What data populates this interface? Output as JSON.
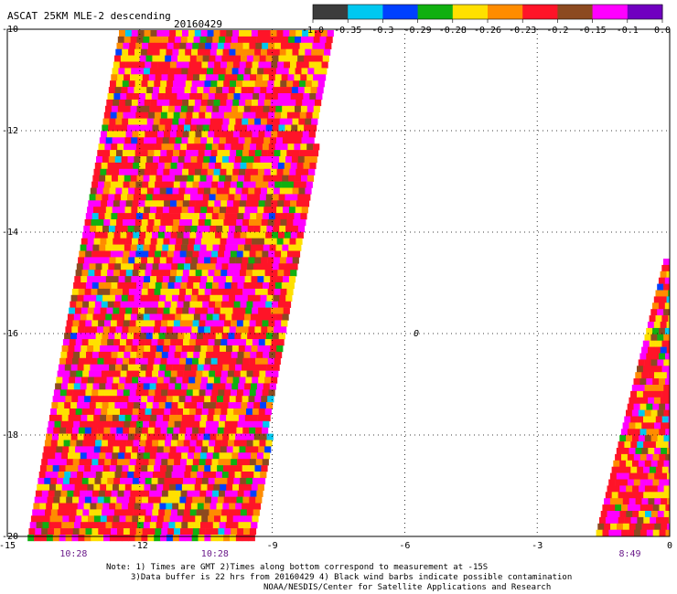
{
  "header": {
    "title": "ASCAT 25KM MLE-2 descending",
    "date": "20160429"
  },
  "colorbar": {
    "colors": [
      "#3c3c3c",
      "#00c8f0",
      "#0040ff",
      "#10b010",
      "#ffe000",
      "#ff8c00",
      "#ff1428",
      "#8c4a20",
      "#ff00ff",
      "#7000c0"
    ],
    "labels": [
      "-1.0",
      "-0.35",
      "-0.3",
      "-0.29",
      "-0.28",
      "-0.26",
      "-0.23",
      "-0.2",
      "-0.15",
      "-0.1",
      "0.0"
    ]
  },
  "map": {
    "x_ticks": [
      "-15",
      "-12",
      "-9",
      "-6",
      "-3",
      "0"
    ],
    "y_ticks": [
      "-10",
      "-12",
      "-14",
      "-16",
      "-18",
      "-20"
    ],
    "x_range": [
      -15,
      0
    ],
    "y_range": [
      -20,
      -10
    ],
    "time_labels": [
      {
        "text": "10:28",
        "lon": -13.5
      },
      {
        "text": "10:28",
        "lon": -10.3
      },
      {
        "text": "8:49",
        "lon": -0.9
      }
    ],
    "marker_text": "0"
  },
  "notes": {
    "line1": "Note: 1) Times are GMT 2)Times along bottom correspond to measurement at -15S",
    "line2": "3)Data buffer is 22 hrs from 20160429 4) Black wind barbs indicate possible contamination",
    "line3": "NOAA/NESDIS/Center for Satellite Applications and Research"
  }
}
